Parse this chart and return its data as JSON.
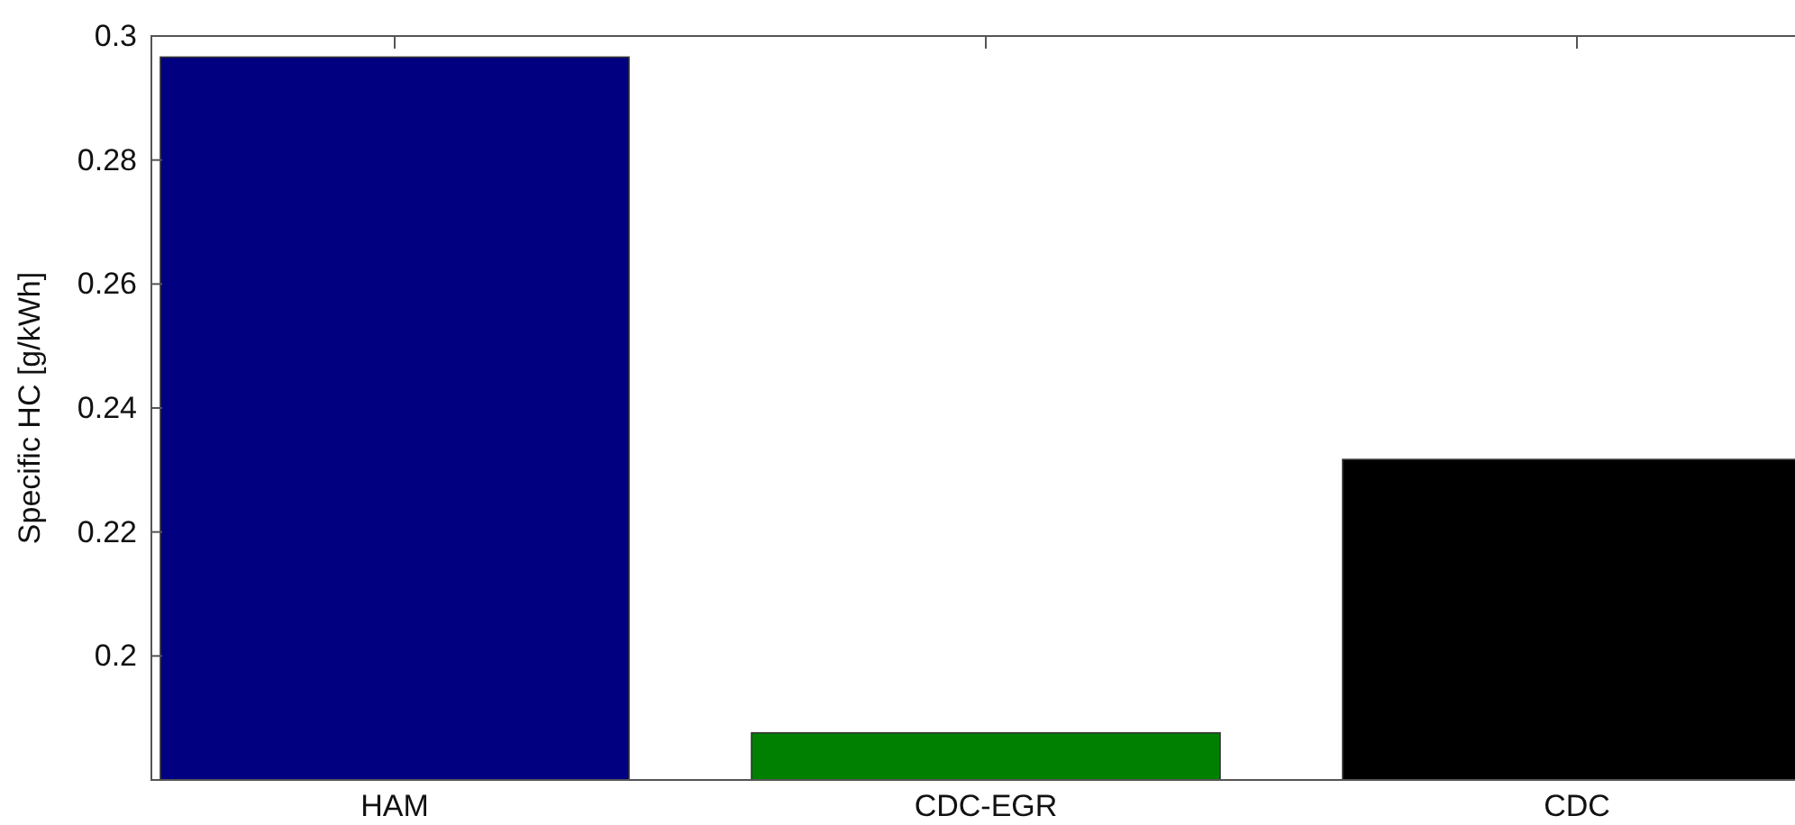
{
  "chart_data": {
    "type": "bar",
    "ylabel": "Specific HC [g/kWh]",
    "categories": [
      "HAM",
      "CDC-EGR",
      "CDC"
    ],
    "values": [
      0.2966,
      0.1876,
      0.2317
    ],
    "colors": [
      "#000080",
      "#008000",
      "#000000"
    ],
    "ylim": [
      0.18,
      0.3
    ],
    "yticks": [
      0.2,
      0.22,
      0.24,
      0.26,
      0.28,
      0.3
    ]
  }
}
